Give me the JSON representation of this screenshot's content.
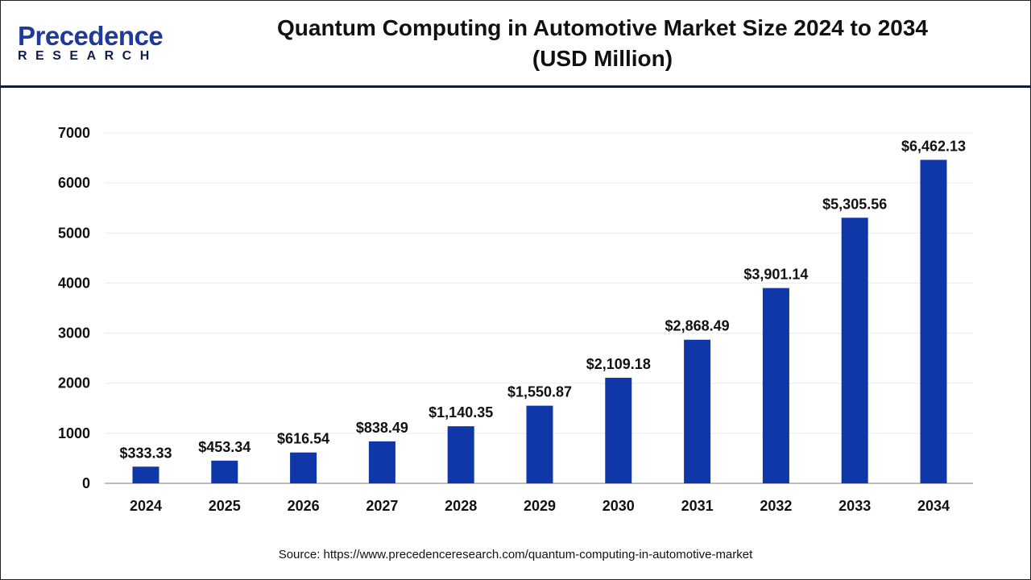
{
  "logo": {
    "line1": "Precedence",
    "line2": "RESEARCH"
  },
  "chart_data": {
    "type": "bar",
    "title": "Quantum Computing in Automotive Market Size 2024 to 2034",
    "subtitle": "(USD Million)",
    "categories": [
      "2024",
      "2025",
      "2026",
      "2027",
      "2028",
      "2029",
      "2030",
      "2031",
      "2032",
      "2033",
      "2034"
    ],
    "values": [
      333.33,
      453.34,
      616.54,
      838.49,
      1140.35,
      1550.87,
      2109.18,
      2868.49,
      3901.14,
      5305.56,
      6462.13
    ],
    "data_labels": [
      "$333.33",
      "$453.34",
      "$616.54",
      "$838.49",
      "$1,140.35",
      "$1,550.87",
      "$2,109.18",
      "$2,868.49",
      "$3,901.14",
      "$5,305.56",
      "$6,462.13"
    ],
    "yticks": [
      "0",
      "1000",
      "2000",
      "3000",
      "4000",
      "5000",
      "6000",
      "7000"
    ],
    "ylim": [
      0,
      7000
    ],
    "xlabel": "",
    "ylabel": "",
    "grid": true,
    "bar_color": "#0f37a8"
  },
  "source": "Source: https://www.precedenceresearch.com/quantum-computing-in-automotive-market"
}
